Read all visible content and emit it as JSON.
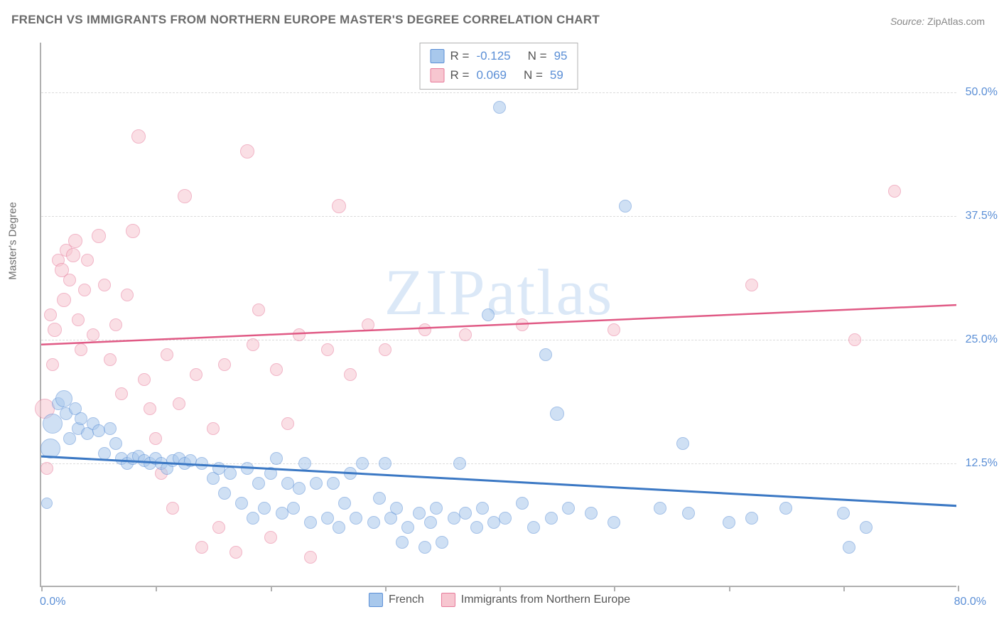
{
  "title": "FRENCH VS IMMIGRANTS FROM NORTHERN EUROPE MASTER'S DEGREE CORRELATION CHART",
  "source_label": "Source:",
  "source_name": "ZipAtlas.com",
  "watermark": "ZIPatlas",
  "y_axis_title": "Master's Degree",
  "x_min_label": "0.0%",
  "x_max_label": "80.0%",
  "y_ticks": [
    {
      "value": 12.5,
      "label": "12.5%"
    },
    {
      "value": 25.0,
      "label": "25.0%"
    },
    {
      "value": 37.5,
      "label": "37.5%"
    },
    {
      "value": 50.0,
      "label": "50.0%"
    }
  ],
  "chart": {
    "type": "scatter",
    "xlim": [
      0,
      80
    ],
    "ylim": [
      0,
      55
    ],
    "x_tick_positions": [
      0,
      10,
      20,
      30,
      40,
      50,
      60,
      70,
      80
    ],
    "background_color": "#ffffff",
    "grid_color": "#dcdcdc",
    "axis_color": "#b0b0b0",
    "tick_label_color": "#5b8fd6",
    "series": {
      "french": {
        "label": "French",
        "fill": "#a8c8ec",
        "stroke": "#5b8fd6",
        "fill_opacity": 0.55,
        "line_color": "#3b78c4",
        "r_value": "-0.125",
        "n_value": "95",
        "trend": {
          "x1": 0,
          "y1": 13.2,
          "x2": 80,
          "y2": 8.2
        },
        "points": [
          {
            "x": 0.5,
            "y": 8.5,
            "r": 8
          },
          {
            "x": 0.8,
            "y": 14.0,
            "r": 14
          },
          {
            "x": 1.0,
            "y": 16.5,
            "r": 14
          },
          {
            "x": 1.5,
            "y": 18.5,
            "r": 9
          },
          {
            "x": 2.0,
            "y": 19.0,
            "r": 12
          },
          {
            "x": 2.2,
            "y": 17.5,
            "r": 9
          },
          {
            "x": 2.5,
            "y": 15.0,
            "r": 9
          },
          {
            "x": 3.0,
            "y": 18.0,
            "r": 9
          },
          {
            "x": 3.2,
            "y": 16.0,
            "r": 9
          },
          {
            "x": 3.5,
            "y": 17.0,
            "r": 9
          },
          {
            "x": 4.0,
            "y": 15.5,
            "r": 9
          },
          {
            "x": 4.5,
            "y": 16.5,
            "r": 9
          },
          {
            "x": 5.0,
            "y": 15.8,
            "r": 9
          },
          {
            "x": 5.5,
            "y": 13.5,
            "r": 9
          },
          {
            "x": 6.0,
            "y": 16.0,
            "r": 9
          },
          {
            "x": 6.5,
            "y": 14.5,
            "r": 9
          },
          {
            "x": 7.0,
            "y": 13.0,
            "r": 9
          },
          {
            "x": 7.5,
            "y": 12.5,
            "r": 9
          },
          {
            "x": 8.0,
            "y": 13.0,
            "r": 9
          },
          {
            "x": 8.5,
            "y": 13.2,
            "r": 9
          },
          {
            "x": 9.0,
            "y": 12.8,
            "r": 9
          },
          {
            "x": 9.5,
            "y": 12.5,
            "r": 9
          },
          {
            "x": 10.0,
            "y": 13.0,
            "r": 9
          },
          {
            "x": 10.5,
            "y": 12.5,
            "r": 9
          },
          {
            "x": 11.0,
            "y": 12.0,
            "r": 9
          },
          {
            "x": 11.5,
            "y": 12.8,
            "r": 9
          },
          {
            "x": 12.0,
            "y": 13.0,
            "r": 9
          },
          {
            "x": 12.5,
            "y": 12.5,
            "r": 9
          },
          {
            "x": 13.0,
            "y": 12.8,
            "r": 9
          },
          {
            "x": 14.0,
            "y": 12.5,
            "r": 9
          },
          {
            "x": 15.0,
            "y": 11.0,
            "r": 9
          },
          {
            "x": 15.5,
            "y": 12.0,
            "r": 9
          },
          {
            "x": 16.0,
            "y": 9.5,
            "r": 9
          },
          {
            "x": 16.5,
            "y": 11.5,
            "r": 9
          },
          {
            "x": 17.5,
            "y": 8.5,
            "r": 9
          },
          {
            "x": 18.0,
            "y": 12.0,
            "r": 9
          },
          {
            "x": 18.5,
            "y": 7.0,
            "r": 9
          },
          {
            "x": 19.0,
            "y": 10.5,
            "r": 9
          },
          {
            "x": 19.5,
            "y": 8.0,
            "r": 9
          },
          {
            "x": 20.0,
            "y": 11.5,
            "r": 9
          },
          {
            "x": 20.5,
            "y": 13.0,
            "r": 9
          },
          {
            "x": 21.0,
            "y": 7.5,
            "r": 9
          },
          {
            "x": 21.5,
            "y": 10.5,
            "r": 9
          },
          {
            "x": 22.0,
            "y": 8.0,
            "r": 9
          },
          {
            "x": 22.5,
            "y": 10.0,
            "r": 9
          },
          {
            "x": 23.0,
            "y": 12.5,
            "r": 9
          },
          {
            "x": 23.5,
            "y": 6.5,
            "r": 9
          },
          {
            "x": 24.0,
            "y": 10.5,
            "r": 9
          },
          {
            "x": 25.0,
            "y": 7.0,
            "r": 9
          },
          {
            "x": 25.5,
            "y": 10.5,
            "r": 9
          },
          {
            "x": 26.0,
            "y": 6.0,
            "r": 9
          },
          {
            "x": 26.5,
            "y": 8.5,
            "r": 9
          },
          {
            "x": 27.0,
            "y": 11.5,
            "r": 9
          },
          {
            "x": 27.5,
            "y": 7.0,
            "r": 9
          },
          {
            "x": 28.0,
            "y": 12.5,
            "r": 9
          },
          {
            "x": 29.0,
            "y": 6.5,
            "r": 9
          },
          {
            "x": 29.5,
            "y": 9.0,
            "r": 9
          },
          {
            "x": 30.0,
            "y": 12.5,
            "r": 9
          },
          {
            "x": 30.5,
            "y": 7.0,
            "r": 9
          },
          {
            "x": 31.0,
            "y": 8.0,
            "r": 9
          },
          {
            "x": 31.5,
            "y": 4.5,
            "r": 9
          },
          {
            "x": 32.0,
            "y": 6.0,
            "r": 9
          },
          {
            "x": 33.0,
            "y": 7.5,
            "r": 9
          },
          {
            "x": 33.5,
            "y": 4.0,
            "r": 9
          },
          {
            "x": 34.0,
            "y": 6.5,
            "r": 9
          },
          {
            "x": 34.5,
            "y": 8.0,
            "r": 9
          },
          {
            "x": 35.0,
            "y": 4.5,
            "r": 9
          },
          {
            "x": 36.0,
            "y": 7.0,
            "r": 9
          },
          {
            "x": 36.5,
            "y": 12.5,
            "r": 9
          },
          {
            "x": 37.0,
            "y": 7.5,
            "r": 9
          },
          {
            "x": 38.0,
            "y": 6.0,
            "r": 9
          },
          {
            "x": 38.5,
            "y": 8.0,
            "r": 9
          },
          {
            "x": 39.0,
            "y": 27.5,
            "r": 9
          },
          {
            "x": 39.5,
            "y": 6.5,
            "r": 9
          },
          {
            "x": 40.0,
            "y": 48.5,
            "r": 9
          },
          {
            "x": 40.5,
            "y": 7.0,
            "r": 9
          },
          {
            "x": 42.0,
            "y": 8.5,
            "r": 9
          },
          {
            "x": 43.0,
            "y": 6.0,
            "r": 9
          },
          {
            "x": 44.0,
            "y": 23.5,
            "r": 9
          },
          {
            "x": 44.5,
            "y": 7.0,
            "r": 9
          },
          {
            "x": 45.0,
            "y": 17.5,
            "r": 10
          },
          {
            "x": 46.0,
            "y": 8.0,
            "r": 9
          },
          {
            "x": 48.0,
            "y": 7.5,
            "r": 9
          },
          {
            "x": 50.0,
            "y": 6.5,
            "r": 9
          },
          {
            "x": 51.0,
            "y": 38.5,
            "r": 9
          },
          {
            "x": 54.0,
            "y": 8.0,
            "r": 9
          },
          {
            "x": 56.0,
            "y": 14.5,
            "r": 9
          },
          {
            "x": 56.5,
            "y": 7.5,
            "r": 9
          },
          {
            "x": 60.0,
            "y": 6.5,
            "r": 9
          },
          {
            "x": 62.0,
            "y": 7.0,
            "r": 9
          },
          {
            "x": 65.0,
            "y": 8.0,
            "r": 9
          },
          {
            "x": 70.0,
            "y": 7.5,
            "r": 9
          },
          {
            "x": 70.5,
            "y": 4.0,
            "r": 9
          },
          {
            "x": 72.0,
            "y": 6.0,
            "r": 9
          }
        ]
      },
      "immigrants": {
        "label": "Immigrants from Northern Europe",
        "fill": "#f7c6d0",
        "stroke": "#e77a9a",
        "fill_opacity": 0.55,
        "line_color": "#e05a85",
        "r_value": "0.069",
        "n_value": "59",
        "trend": {
          "x1": 0,
          "y1": 24.5,
          "x2": 80,
          "y2": 28.5
        },
        "points": [
          {
            "x": 0.3,
            "y": 18.0,
            "r": 14
          },
          {
            "x": 0.5,
            "y": 12.0,
            "r": 9
          },
          {
            "x": 0.8,
            "y": 27.5,
            "r": 9
          },
          {
            "x": 1.0,
            "y": 22.5,
            "r": 9
          },
          {
            "x": 1.2,
            "y": 26.0,
            "r": 10
          },
          {
            "x": 1.5,
            "y": 33.0,
            "r": 9
          },
          {
            "x": 1.8,
            "y": 32.0,
            "r": 10
          },
          {
            "x": 2.0,
            "y": 29.0,
            "r": 10
          },
          {
            "x": 2.2,
            "y": 34.0,
            "r": 9
          },
          {
            "x": 2.5,
            "y": 31.0,
            "r": 9
          },
          {
            "x": 2.8,
            "y": 33.5,
            "r": 10
          },
          {
            "x": 3.0,
            "y": 35.0,
            "r": 10
          },
          {
            "x": 3.2,
            "y": 27.0,
            "r": 9
          },
          {
            "x": 3.5,
            "y": 24.0,
            "r": 9
          },
          {
            "x": 3.8,
            "y": 30.0,
            "r": 9
          },
          {
            "x": 4.0,
            "y": 33.0,
            "r": 9
          },
          {
            "x": 4.5,
            "y": 25.5,
            "r": 9
          },
          {
            "x": 5.0,
            "y": 35.5,
            "r": 10
          },
          {
            "x": 5.5,
            "y": 30.5,
            "r": 9
          },
          {
            "x": 6.0,
            "y": 23.0,
            "r": 9
          },
          {
            "x": 6.5,
            "y": 26.5,
            "r": 9
          },
          {
            "x": 7.0,
            "y": 19.5,
            "r": 9
          },
          {
            "x": 7.5,
            "y": 29.5,
            "r": 9
          },
          {
            "x": 8.0,
            "y": 36.0,
            "r": 10
          },
          {
            "x": 8.5,
            "y": 45.5,
            "r": 10
          },
          {
            "x": 9.0,
            "y": 21.0,
            "r": 9
          },
          {
            "x": 9.5,
            "y": 18.0,
            "r": 9
          },
          {
            "x": 10.0,
            "y": 15.0,
            "r": 9
          },
          {
            "x": 10.5,
            "y": 11.5,
            "r": 9
          },
          {
            "x": 11.0,
            "y": 23.5,
            "r": 9
          },
          {
            "x": 11.5,
            "y": 8.0,
            "r": 9
          },
          {
            "x": 12.0,
            "y": 18.5,
            "r": 9
          },
          {
            "x": 12.5,
            "y": 39.5,
            "r": 10
          },
          {
            "x": 13.5,
            "y": 21.5,
            "r": 9
          },
          {
            "x": 14.0,
            "y": 4.0,
            "r": 9
          },
          {
            "x": 15.0,
            "y": 16.0,
            "r": 9
          },
          {
            "x": 15.5,
            "y": 6.0,
            "r": 9
          },
          {
            "x": 16.0,
            "y": 22.5,
            "r": 9
          },
          {
            "x": 17.0,
            "y": 3.5,
            "r": 9
          },
          {
            "x": 18.0,
            "y": 44.0,
            "r": 10
          },
          {
            "x": 18.5,
            "y": 24.5,
            "r": 9
          },
          {
            "x": 19.0,
            "y": 28.0,
            "r": 9
          },
          {
            "x": 20.0,
            "y": 5.0,
            "r": 9
          },
          {
            "x": 20.5,
            "y": 22.0,
            "r": 9
          },
          {
            "x": 21.5,
            "y": 16.5,
            "r": 9
          },
          {
            "x": 22.5,
            "y": 25.5,
            "r": 9
          },
          {
            "x": 23.5,
            "y": 3.0,
            "r": 9
          },
          {
            "x": 25.0,
            "y": 24.0,
            "r": 9
          },
          {
            "x": 26.0,
            "y": 38.5,
            "r": 10
          },
          {
            "x": 27.0,
            "y": 21.5,
            "r": 9
          },
          {
            "x": 28.5,
            "y": 26.5,
            "r": 9
          },
          {
            "x": 30.0,
            "y": 24.0,
            "r": 9
          },
          {
            "x": 33.5,
            "y": 26.0,
            "r": 9
          },
          {
            "x": 37.0,
            "y": 25.5,
            "r": 9
          },
          {
            "x": 42.0,
            "y": 26.5,
            "r": 9
          },
          {
            "x": 50.0,
            "y": 26.0,
            "r": 9
          },
          {
            "x": 62.0,
            "y": 30.5,
            "r": 9
          },
          {
            "x": 71.0,
            "y": 25.0,
            "r": 9
          },
          {
            "x": 74.5,
            "y": 40.0,
            "r": 9
          }
        ]
      }
    }
  }
}
